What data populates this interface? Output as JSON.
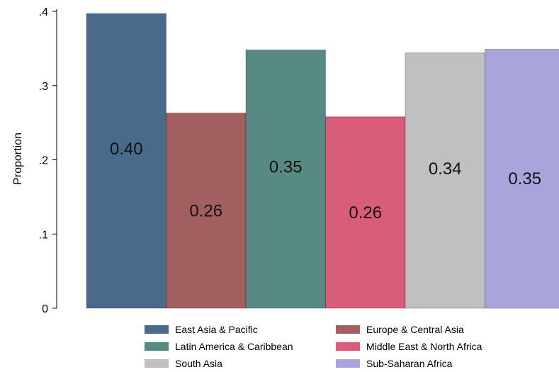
{
  "chart_data": {
    "type": "bar",
    "ylabel": "Proportion",
    "ylim": [
      0,
      0.4
    ],
    "yticks": [
      {
        "value": 0,
        "label": "0"
      },
      {
        "value": 0.1,
        "label": ".1"
      },
      {
        "value": 0.2,
        "label": ".2"
      },
      {
        "value": 0.3,
        "label": ".3"
      },
      {
        "value": 0.4,
        "label": ".4"
      }
    ],
    "legend_position": "bottom",
    "grid": false,
    "series": [
      {
        "name": "East Asia & Pacific",
        "value": 0.397,
        "label": "0.40",
        "color": "#4a6a8c"
      },
      {
        "name": "Europe & Central Asia",
        "value": 0.263,
        "label": "0.26",
        "color": "#a35f5f"
      },
      {
        "name": "Latin America & Caribbean",
        "value": 0.348,
        "label": "0.35",
        "color": "#568a82"
      },
      {
        "name": "Middle East & North Africa",
        "value": 0.258,
        "label": "0.26",
        "color": "#d95c7a"
      },
      {
        "name": "South Asia",
        "value": 0.344,
        "label": "0.34",
        "color": "#c0c0c0"
      },
      {
        "name": "Sub-Saharan Africa",
        "value": 0.349,
        "label": "0.35",
        "color": "#a9a4dc"
      }
    ]
  }
}
